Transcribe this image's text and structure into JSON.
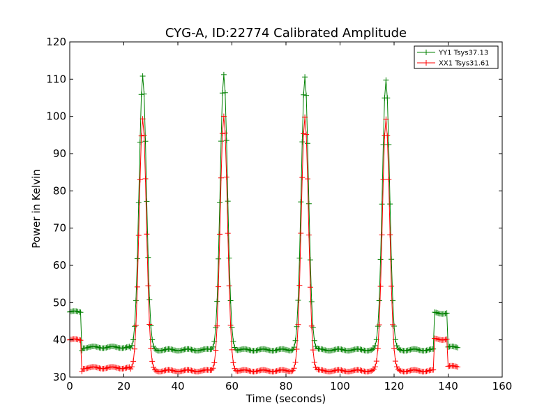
{
  "chart_data": {
    "type": "line",
    "title": "CYG-A, ID:22774 Calibrated Amplitude",
    "xlabel": "Time (seconds)",
    "ylabel": "Power in Kelvin",
    "xlim": [
      0,
      160
    ],
    "ylim": [
      30,
      120
    ],
    "xticks": [
      0,
      20,
      40,
      60,
      80,
      100,
      120,
      140,
      160
    ],
    "yticks": [
      30,
      40,
      50,
      60,
      70,
      80,
      90,
      100,
      110,
      120
    ],
    "grid": false,
    "legend_position": "top-right",
    "marker": "+",
    "series": [
      {
        "name": "YY1 Tsys37.13",
        "color": "#008000",
        "baseline": 37.3,
        "plateau_levels": [
          {
            "x_start": 0,
            "x_end": 4.2,
            "value": 47.5
          },
          {
            "x_start": 4.8,
            "x_end": 22,
            "value": 38.0
          },
          {
            "x_start": 135.0,
            "x_end": 139.5,
            "value": 47.2
          },
          {
            "x_start": 140.0,
            "x_end": 143.5,
            "value": 38.0
          }
        ],
        "peaks": [
          {
            "x": 27.0,
            "y": 111.0
          },
          {
            "x": 57.0,
            "y": 111.0
          },
          {
            "x": 87.0,
            "y": 110.5
          },
          {
            "x": 117.0,
            "y": 110.0
          }
        ]
      },
      {
        "name": "XX1 Tsys31.61",
        "color": "#ff0000",
        "baseline": 31.7,
        "plateau_levels": [
          {
            "x_start": 0,
            "x_end": 4.2,
            "value": 40.0
          },
          {
            "x_start": 4.8,
            "x_end": 22,
            "value": 32.5
          },
          {
            "x_start": 135.0,
            "x_end": 139.5,
            "value": 40.2
          },
          {
            "x_start": 140.0,
            "x_end": 143.5,
            "value": 32.8
          }
        ],
        "peaks": [
          {
            "x": 27.0,
            "y": 99.5
          },
          {
            "x": 57.0,
            "y": 99.8
          },
          {
            "x": 87.0,
            "y": 99.7
          },
          {
            "x": 117.0,
            "y": 99.5
          }
        ]
      }
    ]
  }
}
